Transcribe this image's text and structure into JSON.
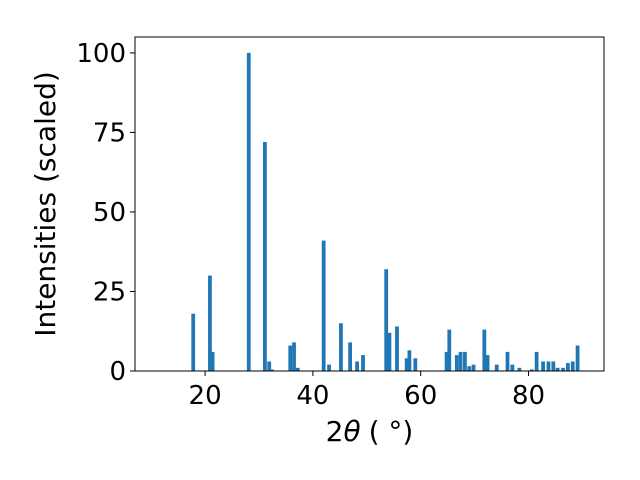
{
  "chart_data": {
    "type": "bar",
    "xlabel": "2θ (°)",
    "xlabel_parts": {
      "prefix": "2",
      "symbol": "θ",
      "unit": "( °)"
    },
    "ylabel": "Intensities (scaled)",
    "xlim": [
      7,
      94
    ],
    "ylim": [
      0,
      105
    ],
    "xticks": [
      20,
      40,
      60,
      80
    ],
    "yticks": [
      0,
      25,
      50,
      75,
      100
    ],
    "bar_color": "#1f77b4",
    "bar_width": 0.7,
    "grid": false,
    "legend": "none",
    "x": [
      17.8,
      20.9,
      21.4,
      28.1,
      31.1,
      31.9,
      32.4,
      35.8,
      36.5,
      37.2,
      42.0,
      43.0,
      45.2,
      46.9,
      48.2,
      49.3,
      53.6,
      54.2,
      55.6,
      57.4,
      57.9,
      59.0,
      64.8,
      65.3,
      66.7,
      67.4,
      68.2,
      69.0,
      69.8,
      71.8,
      72.4,
      74.1,
      76.1,
      77.0,
      78.3,
      80.6,
      81.5,
      82.7,
      83.7,
      84.6,
      85.4,
      86.4,
      87.3,
      88.2,
      89.1
    ],
    "values": [
      18,
      30,
      6,
      100,
      72,
      3,
      0.5,
      8,
      9,
      1,
      41,
      2,
      15,
      9,
      3,
      5,
      32,
      12,
      14,
      4,
      6.5,
      4,
      6,
      13,
      5,
      6,
      6,
      1.5,
      2,
      13,
      5,
      2,
      6,
      2,
      1,
      0.5,
      6,
      3,
      3,
      3,
      1,
      1,
      2.5,
      3,
      8
    ]
  }
}
